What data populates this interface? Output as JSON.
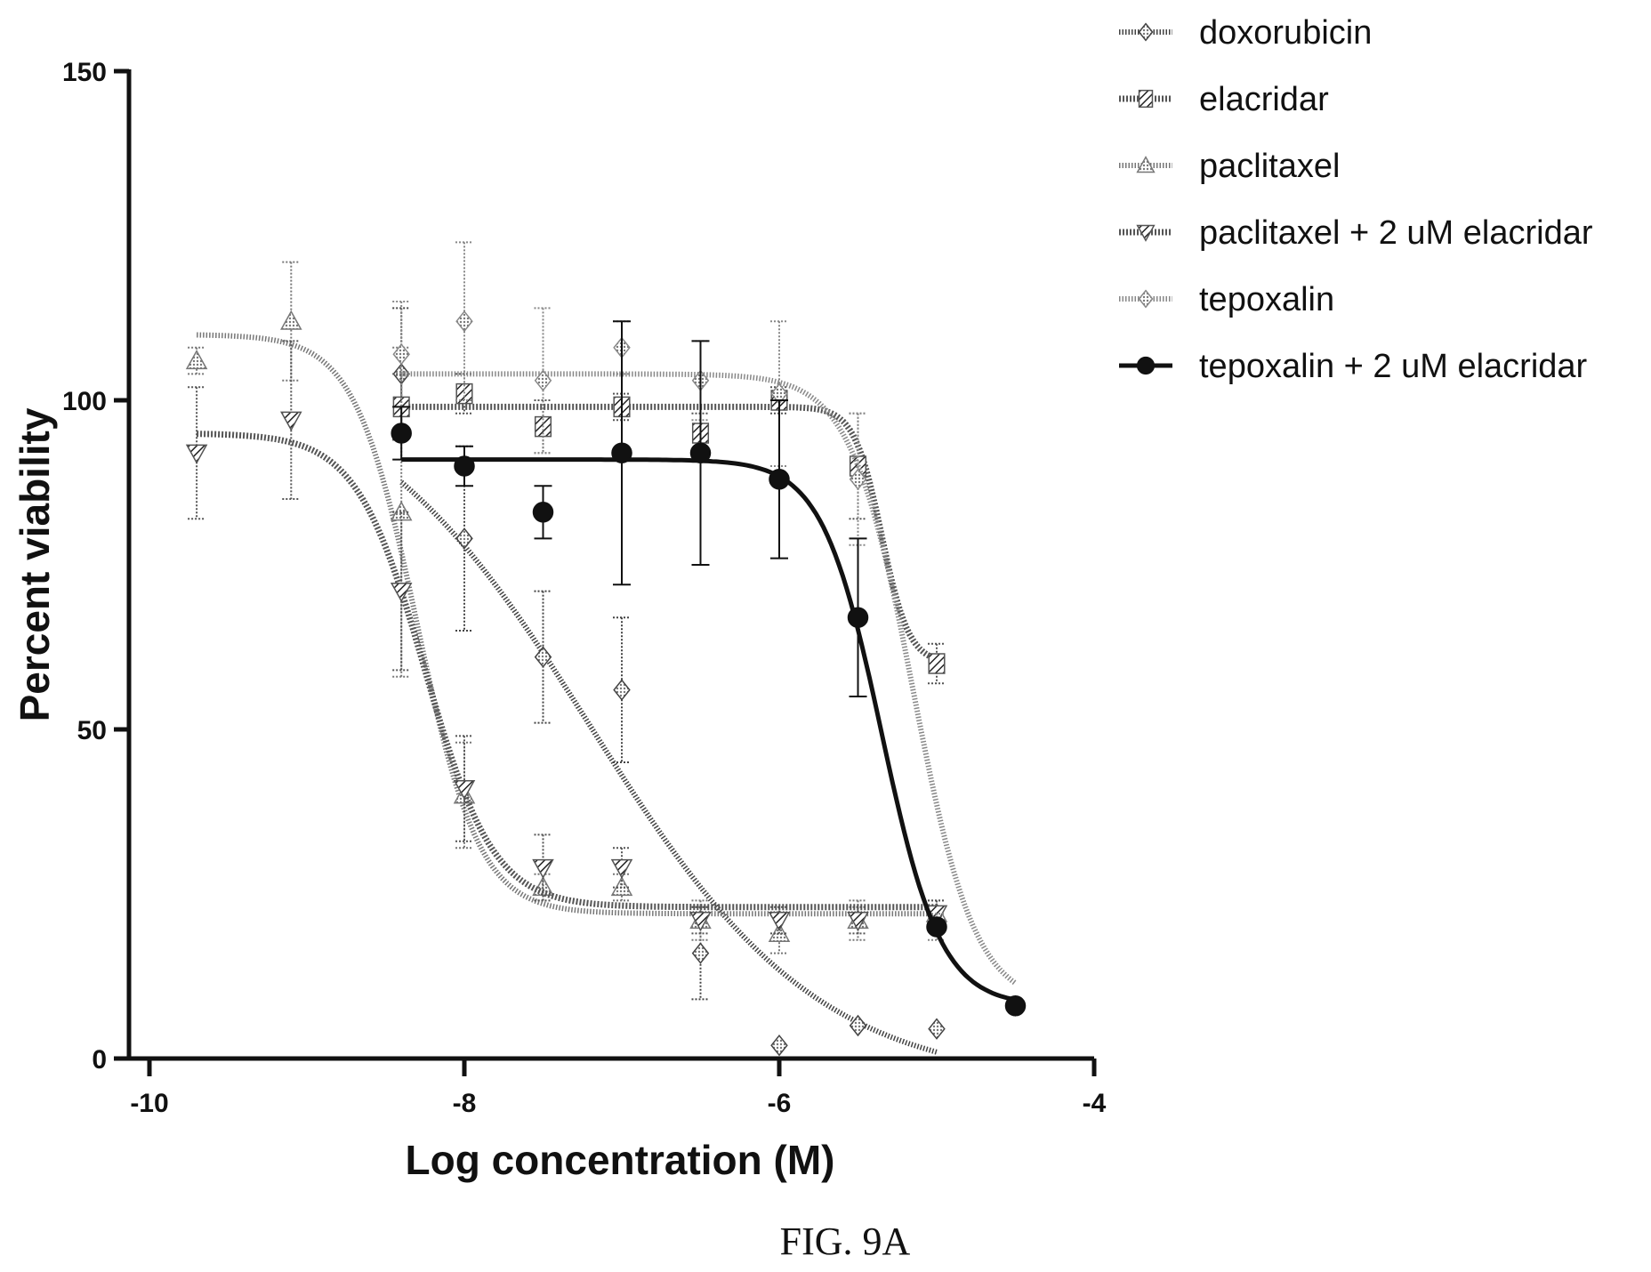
{
  "caption": "FIG. 9A",
  "chart_data": {
    "type": "scatter",
    "title": "",
    "xlabel": "Log concentration (M)",
    "ylabel": "Percent viability",
    "xlim": [
      -10,
      -4
    ],
    "ylim": [
      0,
      150
    ],
    "xticks": [
      -10,
      -8,
      -6,
      -4
    ],
    "yticks": [
      0,
      50,
      100,
      150
    ],
    "xtick_labels": [
      "-10",
      "-8",
      "-6",
      "-4"
    ],
    "ytick_labels": [
      "0",
      "50",
      "100",
      "150"
    ],
    "grid": false,
    "legend_position": "top-right",
    "series": [
      {
        "name": "doxorubicin",
        "marker": "diamond-hatched",
        "color": "#444444",
        "style": "dotted",
        "x": [
          -8.4,
          -8.0,
          -7.5,
          -7.0,
          -6.5,
          -6.0,
          -5.5,
          -5.0
        ],
        "y": [
          104,
          79,
          61,
          56,
          16,
          2,
          5,
          4.5
        ],
        "err": [
          10,
          14,
          10,
          11,
          7,
          0,
          0,
          0
        ],
        "fit": {
          "top": 105,
          "bottom": -4,
          "logec50": -7.2,
          "hill": -0.6,
          "xmin": -8.4,
          "xmax": -5.0
        }
      },
      {
        "name": "elacridar",
        "marker": "square-hatched",
        "color": "#555555",
        "style": "hatched",
        "x": [
          -8.4,
          -8.0,
          -7.5,
          -7.0,
          -6.5,
          -6.0,
          -5.5,
          -5.0
        ],
        "y": [
          99,
          101,
          96,
          99,
          95,
          100,
          90,
          60
        ],
        "err": [
          5,
          3,
          4,
          2,
          3,
          2,
          8,
          3
        ],
        "fit": {
          "top": 99,
          "bottom": 60,
          "logec50": -5.35,
          "hill": -5,
          "xmin": -8.4,
          "xmax": -5.0
        }
      },
      {
        "name": "paclitaxel",
        "marker": "triangle-up-dotted",
        "color": "#777777",
        "style": "dotted",
        "x": [
          -9.7,
          -9.1,
          -8.4,
          -8.0,
          -7.5,
          -7.0,
          -6.5,
          -6.0,
          -5.5,
          -5.0
        ],
        "y": [
          106,
          112,
          83,
          40,
          26,
          26,
          21,
          19,
          21,
          22
        ],
        "err": [
          2,
          9,
          25,
          8,
          2,
          2,
          3,
          3,
          3,
          2
        ],
        "fit": {
          "top": 110,
          "bottom": 22,
          "logec50": -8.3,
          "hill": -2.2,
          "xmin": -9.7,
          "xmax": -5.0
        }
      },
      {
        "name": "paclitaxel + 2 uM elacridar",
        "marker": "triangle-down-hatched",
        "color": "#555555",
        "style": "hatched",
        "x": [
          -9.7,
          -9.1,
          -8.4,
          -8.0,
          -7.5,
          -7.0,
          -6.5,
          -6.0,
          -5.5,
          -5.0
        ],
        "y": [
          92,
          97,
          71,
          41,
          29,
          29,
          21,
          21,
          21,
          22
        ],
        "err": [
          10,
          12,
          12,
          8,
          5,
          3,
          2,
          2,
          2,
          2
        ],
        "fit": {
          "top": 95,
          "bottom": 23,
          "logec50": -8.25,
          "hill": -2.0,
          "xmin": -9.7,
          "xmax": -5.0
        }
      },
      {
        "name": "tepoxalin",
        "marker": "diamond-dotted",
        "color": "#888888",
        "style": "dotted",
        "x": [
          -8.4,
          -8.0,
          -7.5,
          -7.0,
          -6.5,
          -6.0,
          -5.5,
          -5.0,
          -4.5
        ],
        "y": [
          107,
          112,
          103,
          108,
          103,
          101,
          88,
          20,
          8
        ],
        "err": [
          8,
          12,
          11,
          4,
          6,
          11,
          10,
          2,
          0
        ],
        "fit": {
          "top": 104,
          "bottom": 8,
          "logec50": -5.15,
          "hill": -2.2,
          "xmin": -8.4,
          "xmax": -4.5
        }
      },
      {
        "name": "tepoxalin + 2 uM elacridar",
        "marker": "circle-filled",
        "color": "#111111",
        "style": "solid",
        "x": [
          -8.4,
          -8.0,
          -7.5,
          -7.0,
          -6.5,
          -6.0,
          -5.5,
          -5.0,
          -4.5
        ],
        "y": [
          95,
          90,
          83,
          92,
          92,
          88,
          67,
          20,
          8
        ],
        "err": [
          4,
          3,
          4,
          20,
          17,
          12,
          12,
          0,
          0
        ],
        "fit": {
          "top": 91,
          "bottom": 8,
          "logec50": -5.35,
          "hill": -2.3,
          "xmin": -8.4,
          "xmax": -4.5
        }
      }
    ]
  }
}
